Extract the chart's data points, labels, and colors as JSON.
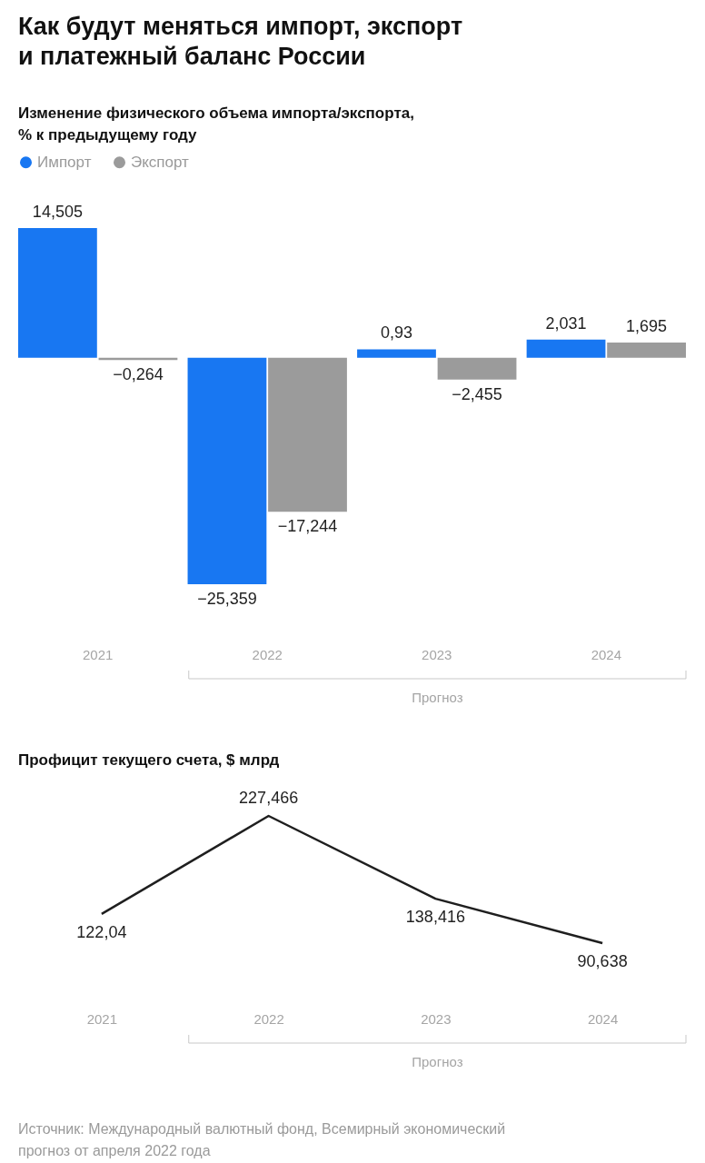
{
  "chart_data": [
    {
      "type": "bar",
      "title": "Как будут меняться импорт, экспорт\nи платежный баланс России",
      "subtitle": "Изменение физического объема импорта/экспорта,\n% к предыдущему году",
      "categories": [
        "2021",
        "2022",
        "2023",
        "2024"
      ],
      "series": [
        {
          "name": "Импорт",
          "color": "#1877f2",
          "values": [
            14.505,
            -25.359,
            0.93,
            2.031
          ],
          "value_labels": [
            "14,505",
            "−25,359",
            "0,93",
            "2,031"
          ]
        },
        {
          "name": "Экспорт",
          "color": "#9b9b9b",
          "values": [
            -0.264,
            -17.244,
            -2.455,
            1.695
          ],
          "value_labels": [
            "−0,264",
            "−17,244",
            "−2,455",
            "1,695"
          ]
        }
      ],
      "legend": "top left",
      "annotations": [
        "Прогноз"
      ]
    },
    {
      "type": "line",
      "title": "Профицит текущего счета, $ млрд",
      "categories": [
        "2021",
        "2022",
        "2023",
        "2024"
      ],
      "color": "#1f1f1f",
      "values": [
        122.04,
        227.466,
        138.416,
        90.638
      ],
      "value_labels": [
        "122,04",
        "227,466",
        "138,416",
        "90,638"
      ],
      "annotations": [
        "Прогноз",
        "Источник: Международный валютный фонд, Всемирный экономический\nпрогноз от апреля 2022 года"
      ]
    }
  ]
}
